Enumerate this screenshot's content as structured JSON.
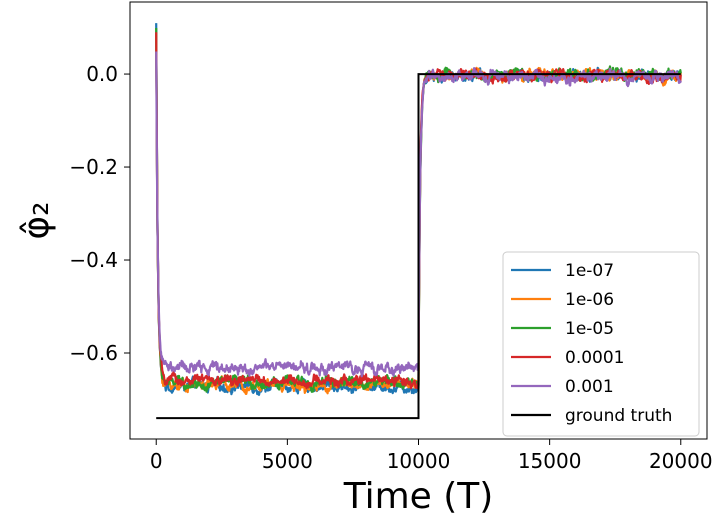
{
  "chart_data": {
    "type": "line",
    "xlabel": "Time (T)",
    "ylabel": "φ̂₂",
    "xlim": [
      -1000,
      21000
    ],
    "ylim": [
      -0.785,
      0.155
    ],
    "grid": false,
    "legend_position": "lower-right",
    "x_ticks": [
      {
        "value": 0,
        "label": "0"
      },
      {
        "value": 5000,
        "label": "5000"
      },
      {
        "value": 10000,
        "label": "10000"
      },
      {
        "value": 15000,
        "label": "15000"
      },
      {
        "value": 20000,
        "label": "20000"
      }
    ],
    "y_ticks": [
      {
        "value": 0.0,
        "label": "0.0"
      },
      {
        "value": -0.2,
        "label": "−0.2"
      },
      {
        "value": -0.4,
        "label": "−0.4"
      },
      {
        "value": -0.6,
        "label": "−0.6"
      }
    ],
    "series": [
      {
        "name": "1e-07",
        "color": "#1f77b4",
        "start": 0.11,
        "plateau1": -0.672,
        "plateau2": -0.003,
        "noise": 0.01
      },
      {
        "name": "1e-06",
        "color": "#ff7f0e",
        "start": 0.09,
        "plateau1": -0.668,
        "plateau2": -0.002,
        "noise": 0.01
      },
      {
        "name": "1e-05",
        "color": "#2ca02c",
        "start": 0.1,
        "plateau1": -0.664,
        "plateau2": -0.002,
        "noise": 0.01
      },
      {
        "name": "0.0001",
        "color": "#d62728",
        "start": 0.09,
        "plateau1": -0.66,
        "plateau2": -0.004,
        "noise": 0.01
      },
      {
        "name": "0.001",
        "color": "#9467bd",
        "start": 0.05,
        "plateau1": -0.632,
        "plateau2": -0.005,
        "noise": 0.011
      }
    ],
    "ground_truth": {
      "name": "ground truth",
      "color": "#000000",
      "x": [
        0,
        10000,
        10000,
        20000
      ],
      "y": [
        -0.74,
        -0.74,
        0.0,
        0.0
      ]
    }
  }
}
